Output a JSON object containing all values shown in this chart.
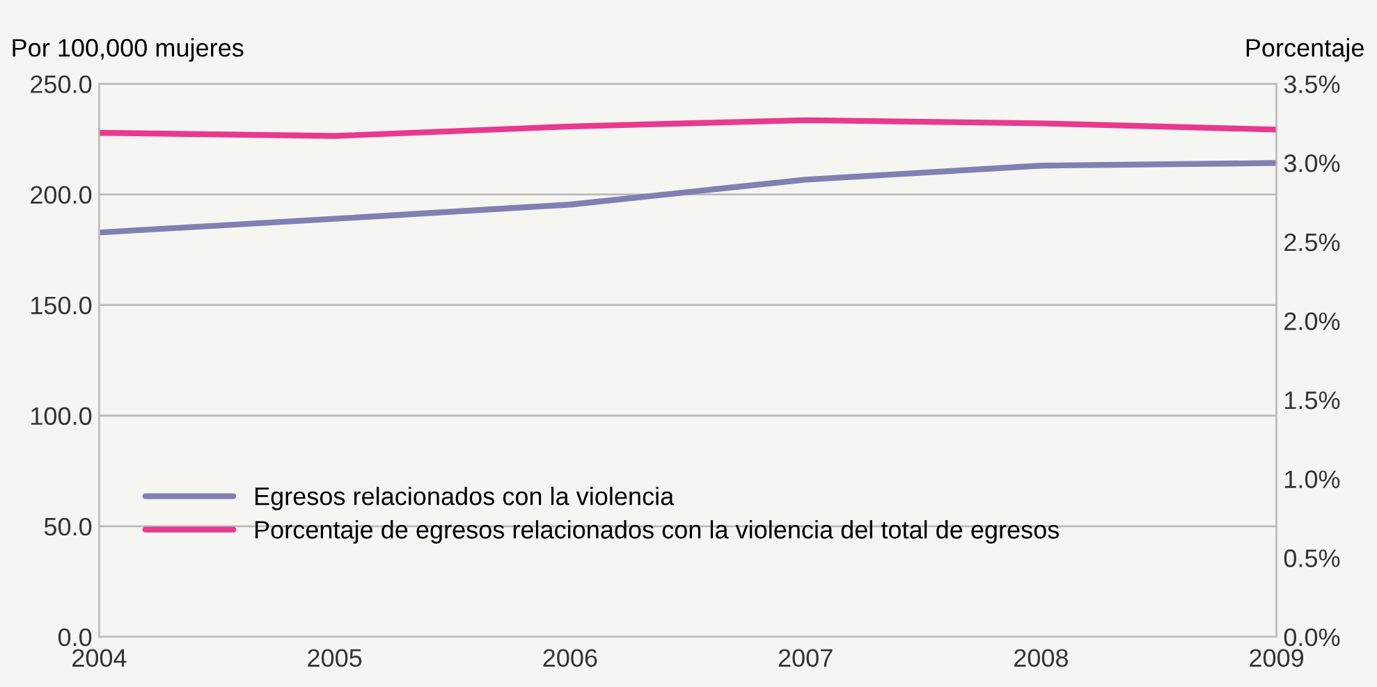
{
  "chart_data": {
    "type": "line",
    "ylabel": "Por 100,000 mujeres",
    "y2label": "Porcentaje",
    "x": [
      2004,
      2005,
      2006,
      2007,
      2008,
      2009
    ],
    "xlim": [
      2004,
      2009
    ],
    "xticks": [
      2004,
      2005,
      2006,
      2007,
      2008,
      2009
    ],
    "ylim": [
      0,
      250
    ],
    "yticks": [
      {
        "value": 0,
        "label": "0.0"
      },
      {
        "value": 50,
        "label": "50.0"
      },
      {
        "value": 100,
        "label": "100.0"
      },
      {
        "value": 150,
        "label": "150.0"
      },
      {
        "value": 200,
        "label": "200.0"
      },
      {
        "value": 250,
        "label": "250.0"
      }
    ],
    "y2lim": [
      0,
      3.5
    ],
    "y2ticks": [
      {
        "value": 0,
        "label": "0.0%"
      },
      {
        "value": 0.5,
        "label": "0.5%"
      },
      {
        "value": 1,
        "label": "1.0%"
      },
      {
        "value": 1.5,
        "label": "1.5%"
      },
      {
        "value": 2,
        "label": "2.0%"
      },
      {
        "value": 2.5,
        "label": "2.5%"
      },
      {
        "value": 3,
        "label": "3.0%"
      },
      {
        "value": 3.5,
        "label": "3.5%"
      }
    ],
    "grid": "y",
    "legend": "center left",
    "marker": "none",
    "line_style": "solid",
    "series": [
      {
        "name": "Egresos relacionados con la violencia",
        "color": "#8080b2",
        "values": [
          182.8,
          189.0,
          195.4,
          206.7,
          213.0,
          214.2
        ]
      },
      {
        "name": "Porcentaje de egresos relacionados con la violencia del total de egresos",
        "color": "#e8398f",
        "axis": "y2",
        "values": [
          3.19,
          3.17,
          3.23,
          3.27,
          3.25,
          3.21
        ]
      }
    ]
  }
}
